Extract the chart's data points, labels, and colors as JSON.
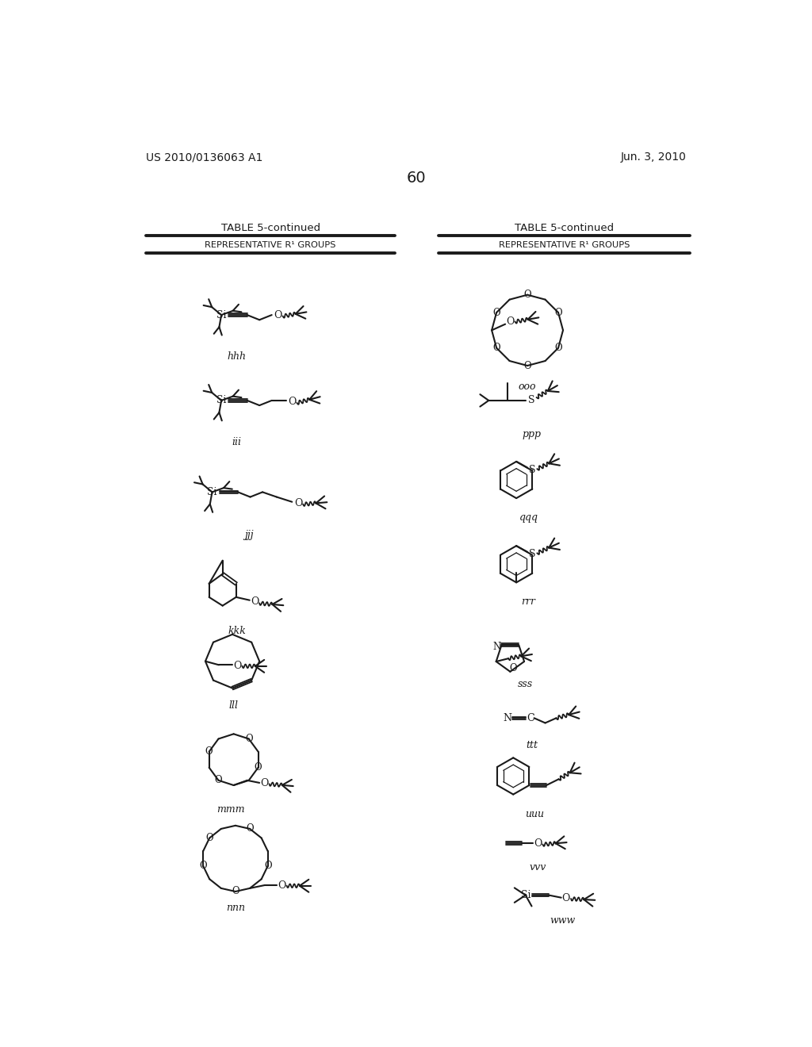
{
  "page_number": "60",
  "patent_number": "US 2010/0136063 A1",
  "patent_date": "Jun. 3, 2010",
  "table_title": "TABLE 5-continued",
  "table_subtitle": "REPRESENTATIVE R¹ GROUPS",
  "bg": "#ffffff"
}
